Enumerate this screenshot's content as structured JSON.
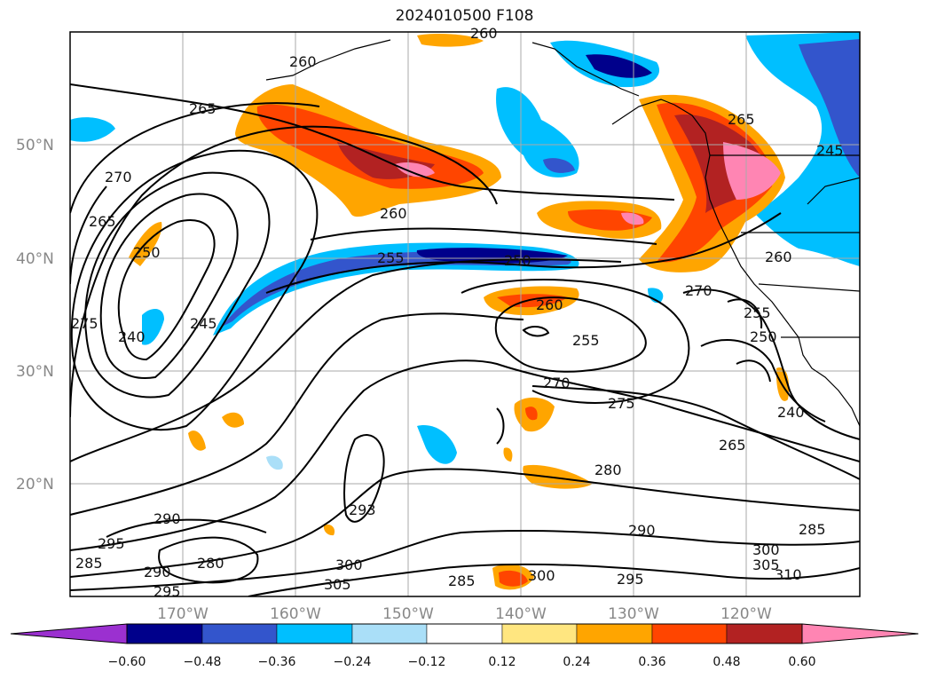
{
  "title": "2024010500 F108",
  "map": {
    "lat_labels": [
      "50°N",
      "40°N",
      "30°N",
      "20°N"
    ],
    "lon_labels": [
      "170°W",
      "160°W",
      "150°W",
      "140°W",
      "130°W",
      "120°W"
    ],
    "contour_labels": [
      "260",
      "260",
      "265",
      "270",
      "265",
      "250",
      "240",
      "245",
      "275",
      "260",
      "255",
      "250",
      "260",
      "255",
      "270",
      "275",
      "265",
      "270",
      "265",
      "260",
      "255",
      "250",
      "245",
      "240",
      "280",
      "290",
      "295",
      "285",
      "280",
      "295",
      "290",
      "293",
      "300",
      "305",
      "285",
      "300",
      "295",
      "290",
      "300",
      "305",
      "310",
      "285"
    ]
  },
  "colorbar": {
    "labels": [
      "−0.60",
      "−0.48",
      "−0.36",
      "−0.24",
      "−0.12",
      "0.12",
      "0.24",
      "0.36",
      "0.48",
      "0.60"
    ],
    "colors": {
      "under": "#9b30d0",
      "b1": "#00008b",
      "b2": "#3355cc",
      "b3": "#00bfff",
      "b4": "#aadff8",
      "b5": "#ffffff",
      "b6": "#ffe680",
      "b7": "#ffa500",
      "b8": "#ff4500",
      "b9": "#b22222",
      "over": "#ff85b3"
    }
  }
}
